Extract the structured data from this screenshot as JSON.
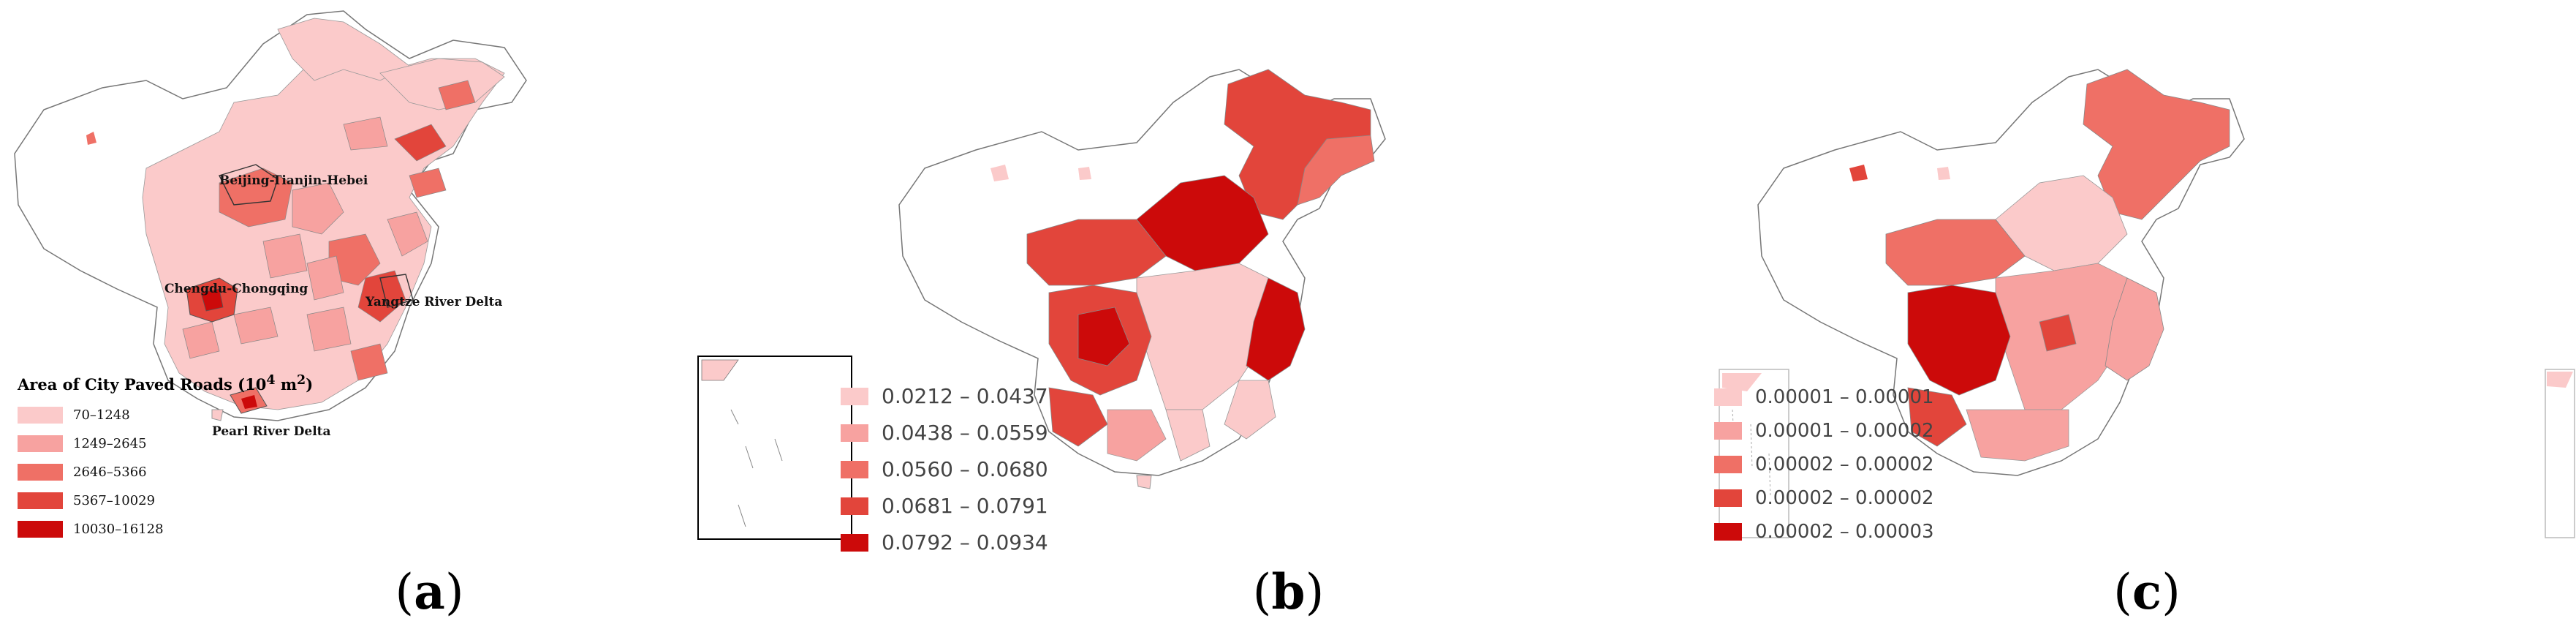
{
  "panels": [
    {
      "caption_letter": "a",
      "legend_title_main": "Area of City Paved Roads (10",
      "legend_title_sup": "4",
      "legend_title_unit": " m",
      "legend_title_sup2": "2",
      "legend_title_close": ")",
      "legend": [
        {
          "label": "70–1248",
          "color": "#fbcaca"
        },
        {
          "label": "1249–2645",
          "color": "#f7a2a0"
        },
        {
          "label": "2646–5366",
          "color": "#ef7066"
        },
        {
          "label": "5367–10029",
          "color": "#e2453b"
        },
        {
          "label": "10030–16128",
          "color": "#cc0a0a"
        }
      ],
      "regions": [
        "Beijing-Tianjin-Hebei",
        "Yangtze River Delta",
        "Chengdu-Chongqing",
        "Pearl River Delta"
      ]
    },
    {
      "caption_letter": "b",
      "legend": [
        {
          "label": "0.0212 – 0.0437",
          "color": "#fbcaca"
        },
        {
          "label": "0.0438 – 0.0559",
          "color": "#f7a2a0"
        },
        {
          "label": "0.0560 – 0.0680",
          "color": "#ef7066"
        },
        {
          "label": "0.0681 – 0.0791",
          "color": "#e2453b"
        },
        {
          "label": "0.0792 – 0.0934",
          "color": "#cc0a0a"
        }
      ]
    },
    {
      "caption_letter": "c",
      "legend": [
        {
          "label": "0.00001 – 0.00001",
          "color": "#fbcaca"
        },
        {
          "label": "0.00001 – 0.00002",
          "color": "#f7a2a0"
        },
        {
          "label": "0.00002 – 0.00002",
          "color": "#ef7066"
        },
        {
          "label": "0.00002 – 0.00002",
          "color": "#e2453b"
        },
        {
          "label": "0.00002 – 0.00003",
          "color": "#cc0a0a"
        }
      ]
    }
  ]
}
